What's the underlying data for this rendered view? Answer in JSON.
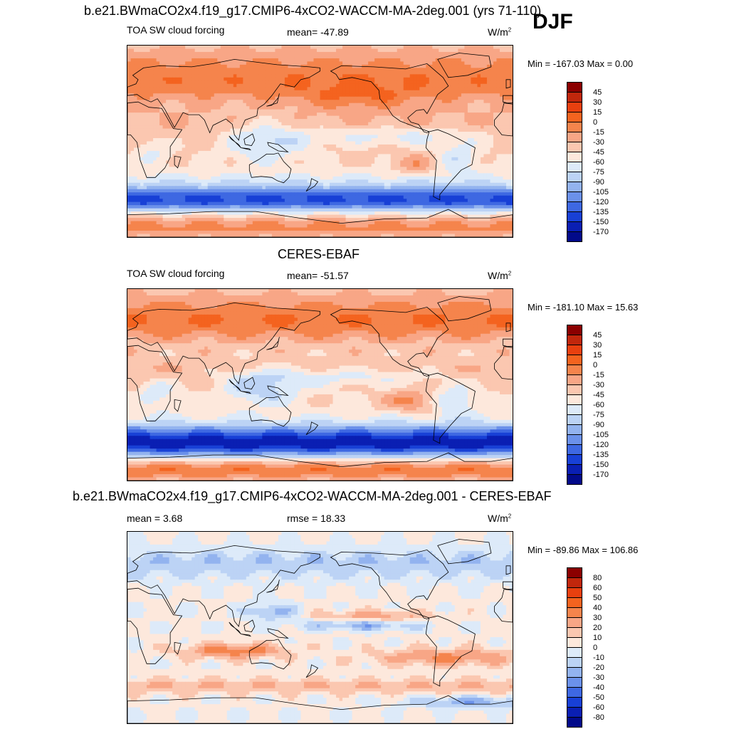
{
  "season": "DJF",
  "panels": [
    {
      "id": "model",
      "title": "b.e21.BWmaCO2x4.f19_g17.CMIP6-4xCO2-WACCM-MA-2deg.001 (yrs 71-110)",
      "left_label": "TOA SW cloud forcing",
      "mid_label": "mean= -47.89",
      "units_base": "W/m",
      "units_exp": "2",
      "minmax": "Min = -167.03 Max =   0.00"
    },
    {
      "id": "obs",
      "title": "CERES-EBAF",
      "left_label": "TOA SW cloud forcing",
      "mid_label": "mean= -51.57",
      "units_base": "W/m",
      "units_exp": "2",
      "minmax": "Min = -181.10 Max =  15.63"
    },
    {
      "id": "diff",
      "title": "b.e21.BWmaCO2x4.f19_g17.CMIP6-4xCO2-WACCM-MA-2deg.001 - CERES-EBAF",
      "left_label": "mean =   3.68",
      "mid_label": "rmse =  18.33",
      "units_base": "W/m",
      "units_exp": "2",
      "minmax": "Min = -89.86 Max = 106.86"
    }
  ],
  "chart_data": [
    {
      "type": "heatmap",
      "title": "b.e21.BWmaCO2x4.f19_g17.CMIP6-4xCO2-WACCM-MA-2deg.001 (yrs 71-110)",
      "variable": "TOA SW cloud forcing",
      "units": "W/m2",
      "mean": -47.89,
      "min": -167.03,
      "max": 0.0,
      "colorbar_levels": [
        "45",
        "30",
        "15",
        "0",
        "-15",
        "-30",
        "-45",
        "-60",
        "-75",
        "-90",
        "-105",
        "-120",
        "-135",
        "-150",
        "-170"
      ],
      "colorbar_colors": [
        "#8b0000",
        "#c1270c",
        "#e8400f",
        "#f4631f",
        "#f5844c",
        "#f8a686",
        "#fbc7b0",
        "#fde8dc",
        "#ddeaf9",
        "#bcd3f5",
        "#93b3ef",
        "#6b91ea",
        "#3e68e2",
        "#1840d6",
        "#0a1fb3",
        "#020a8a"
      ],
      "field_model": "model"
    },
    {
      "type": "heatmap",
      "title": "CERES-EBAF",
      "variable": "TOA SW cloud forcing",
      "units": "W/m2",
      "mean": -51.57,
      "min": -181.1,
      "max": 15.63,
      "colorbar_levels": [
        "45",
        "30",
        "15",
        "0",
        "-15",
        "-30",
        "-45",
        "-60",
        "-75",
        "-90",
        "-105",
        "-120",
        "-135",
        "-150",
        "-170"
      ],
      "colorbar_colors": [
        "#8b0000",
        "#c1270c",
        "#e8400f",
        "#f4631f",
        "#f5844c",
        "#f8a686",
        "#fbc7b0",
        "#fde8dc",
        "#ddeaf9",
        "#bcd3f5",
        "#93b3ef",
        "#6b91ea",
        "#3e68e2",
        "#1840d6",
        "#0a1fb3",
        "#020a8a"
      ],
      "field_model": "obs"
    },
    {
      "type": "heatmap",
      "title": "b.e21.BWmaCO2x4.f19_g17.CMIP6-4xCO2-WACCM-MA-2deg.001 - CERES-EBAF",
      "variable": "difference",
      "units": "W/m2",
      "mean": 3.68,
      "rmse": 18.33,
      "min": -89.86,
      "max": 106.86,
      "colorbar_levels": [
        "80",
        "60",
        "50",
        "40",
        "30",
        "20",
        "10",
        "0",
        "-10",
        "-20",
        "-30",
        "-40",
        "-50",
        "-60",
        "-80"
      ],
      "colorbar_colors": [
        "#8b0000",
        "#c1270c",
        "#e8400f",
        "#f4631f",
        "#f5844c",
        "#f8a686",
        "#fbc7b0",
        "#fde8dc",
        "#ddeaf9",
        "#bcd3f5",
        "#93b3ef",
        "#6b91ea",
        "#3e68e2",
        "#1840d6",
        "#0a1fb3",
        "#020a8a"
      ],
      "field_model": "diff"
    }
  ]
}
